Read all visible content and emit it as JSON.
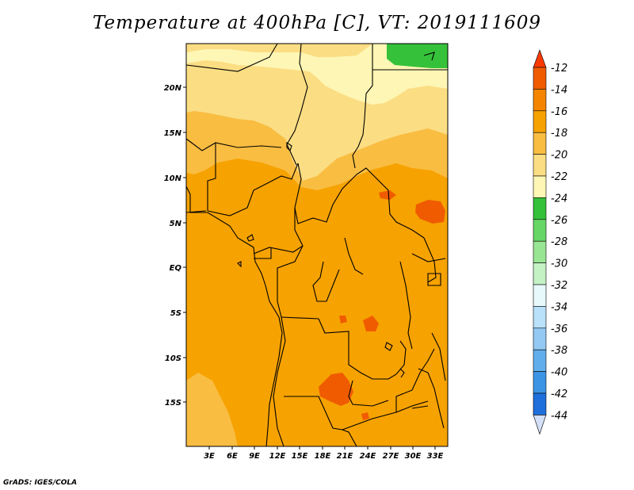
{
  "title": "Temperature at 400hPa [C], VT: 2019111609",
  "footer": "GrADS: IGES/COLA",
  "map": {
    "lon_range": [
      0,
      34
    ],
    "lat_range": [
      -20,
      25
    ],
    "lat_ticks": [
      "20N",
      "15N",
      "10N",
      "5N",
      "EQ",
      "5S",
      "10S",
      "15S"
    ],
    "lon_ticks": [
      "3E",
      "6E",
      "9E",
      "12E",
      "15E",
      "18E",
      "21E",
      "24E",
      "27E",
      "30E",
      "33E"
    ],
    "dominant_field_color": "#f4a100"
  },
  "colorbar": {
    "labels": [
      "-12",
      "-14",
      "-16",
      "-18",
      "-20",
      "-22",
      "-24",
      "-26",
      "-28",
      "-30",
      "-32",
      "-34",
      "-36",
      "-38",
      "-40",
      "-42",
      "-44"
    ],
    "colors": [
      "#f05b00",
      "#f58500",
      "#f6a201",
      "#f9bd42",
      "#fbdd83",
      "#fef6b4",
      "#35c139",
      "#66d766",
      "#98e594",
      "#c5f2c5",
      "#e8f9fb",
      "#b9e1f9",
      "#93c9f3",
      "#61aeec",
      "#3c94e5",
      "#1e6fdb",
      "#0c53c6",
      "#1c2d8a"
    ],
    "top_arrow_color": "#f83a00",
    "bottom_arrow_color": "#d3e0f7"
  }
}
